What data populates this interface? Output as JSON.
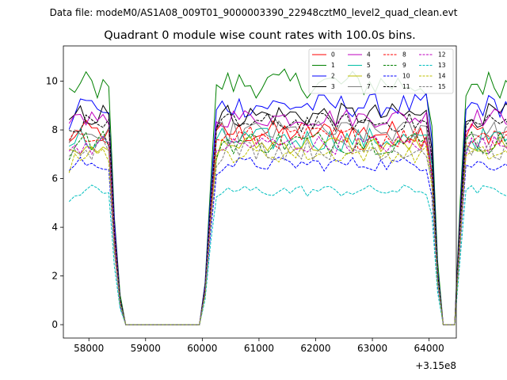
{
  "figure": {
    "suptitle": "Data file: modeM0/AS1A08_009T01_9000003390_22948cztM0_level2_quad_clean.evt"
  },
  "chart_data": {
    "type": "line",
    "title": "Quadrant 0 module wise count rates with 100.0s bins.",
    "xlabel": "",
    "ylabel": "",
    "x_offset_label": "+3.15e8",
    "xlim": [
      57550,
      64480
    ],
    "ylim": [
      -0.55,
      11.45
    ],
    "x_ticks": [
      58000,
      59000,
      60000,
      61000,
      62000,
      63000,
      64000
    ],
    "x_tick_labels": [
      "58000",
      "59000",
      "60000",
      "61000",
      "62000",
      "63000",
      "64000"
    ],
    "y_ticks": [
      0,
      2,
      4,
      6,
      8,
      10
    ],
    "y_tick_labels": [
      "0",
      "2",
      "4",
      "6",
      "8",
      "10"
    ],
    "grid": false,
    "legend_position": "top-right",
    "x_start": 57650,
    "x_step": 100,
    "profile": [
      0.93,
      1.0,
      1.0,
      1.0,
      1.0,
      1.0,
      1.0,
      0.97,
      0.45,
      0.12,
      0.0,
      0.0,
      0.0,
      0.0,
      0.0,
      0.0,
      0.0,
      0.0,
      0.0,
      0.0,
      0.0,
      0.0,
      0.0,
      0.0,
      0.18,
      0.6,
      0.96,
      1.0,
      1.0,
      1.0,
      1.0,
      1.0,
      1.0,
      1.0,
      1.0,
      1.0,
      1.0,
      1.0,
      1.0,
      1.0,
      1.0,
      1.0,
      1.0,
      1.0,
      1.0,
      1.0,
      1.0,
      1.0,
      1.0,
      1.0,
      1.0,
      1.0,
      1.0,
      1.0,
      1.0,
      1.0,
      1.0,
      1.0,
      1.0,
      1.0,
      1.0,
      1.0,
      1.0,
      1.0,
      0.82,
      0.25,
      0.0,
      0.0,
      0.0,
      0.5,
      0.97,
      1.0,
      1.0,
      1.0,
      1.0,
      1.0,
      1.0,
      1.0,
      1.0,
      1.0,
      0.72
    ],
    "series": [
      {
        "name": "0",
        "color": "#ff0000",
        "dash": "solid",
        "base": 7.9,
        "amp": 0.5
      },
      {
        "name": "1",
        "color": "#008000",
        "dash": "solid",
        "base": 9.9,
        "amp": 0.6
      },
      {
        "name": "2",
        "color": "#0000ff",
        "dash": "solid",
        "base": 9.0,
        "amp": 0.5
      },
      {
        "name": "3",
        "color": "#000000",
        "dash": "solid",
        "base": 8.6,
        "amp": 0.5
      },
      {
        "name": "4",
        "color": "#bf00bf",
        "dash": "solid",
        "base": 8.5,
        "amp": 0.4
      },
      {
        "name": "5",
        "color": "#00bfa5",
        "dash": "solid",
        "base": 7.6,
        "amp": 0.5
      },
      {
        "name": "6",
        "color": "#bfbf00",
        "dash": "solid",
        "base": 7.4,
        "amp": 0.4
      },
      {
        "name": "7",
        "color": "#808080",
        "dash": "solid",
        "base": 7.9,
        "amp": 0.5
      },
      {
        "name": "8",
        "color": "#ff0000",
        "dash": "dashed",
        "base": 7.7,
        "amp": 0.5
      },
      {
        "name": "9",
        "color": "#008000",
        "dash": "dashed",
        "base": 7.5,
        "amp": 0.5
      },
      {
        "name": "10",
        "color": "#0000ff",
        "dash": "dashed",
        "base": 6.6,
        "amp": 0.3
      },
      {
        "name": "11",
        "color": "#000000",
        "dash": "dashed",
        "base": 8.3,
        "amp": 0.4
      },
      {
        "name": "12",
        "color": "#bf00bf",
        "dash": "dashed",
        "base": 7.4,
        "amp": 0.4
      },
      {
        "name": "13",
        "color": "#00bfbf",
        "dash": "dashed",
        "base": 5.5,
        "amp": 0.25
      },
      {
        "name": "14",
        "color": "#bfbf00",
        "dash": "dashed",
        "base": 7.0,
        "amp": 0.35
      },
      {
        "name": "15",
        "color": "#808080",
        "dash": "dashed",
        "base": 7.2,
        "amp": 0.45
      }
    ]
  }
}
